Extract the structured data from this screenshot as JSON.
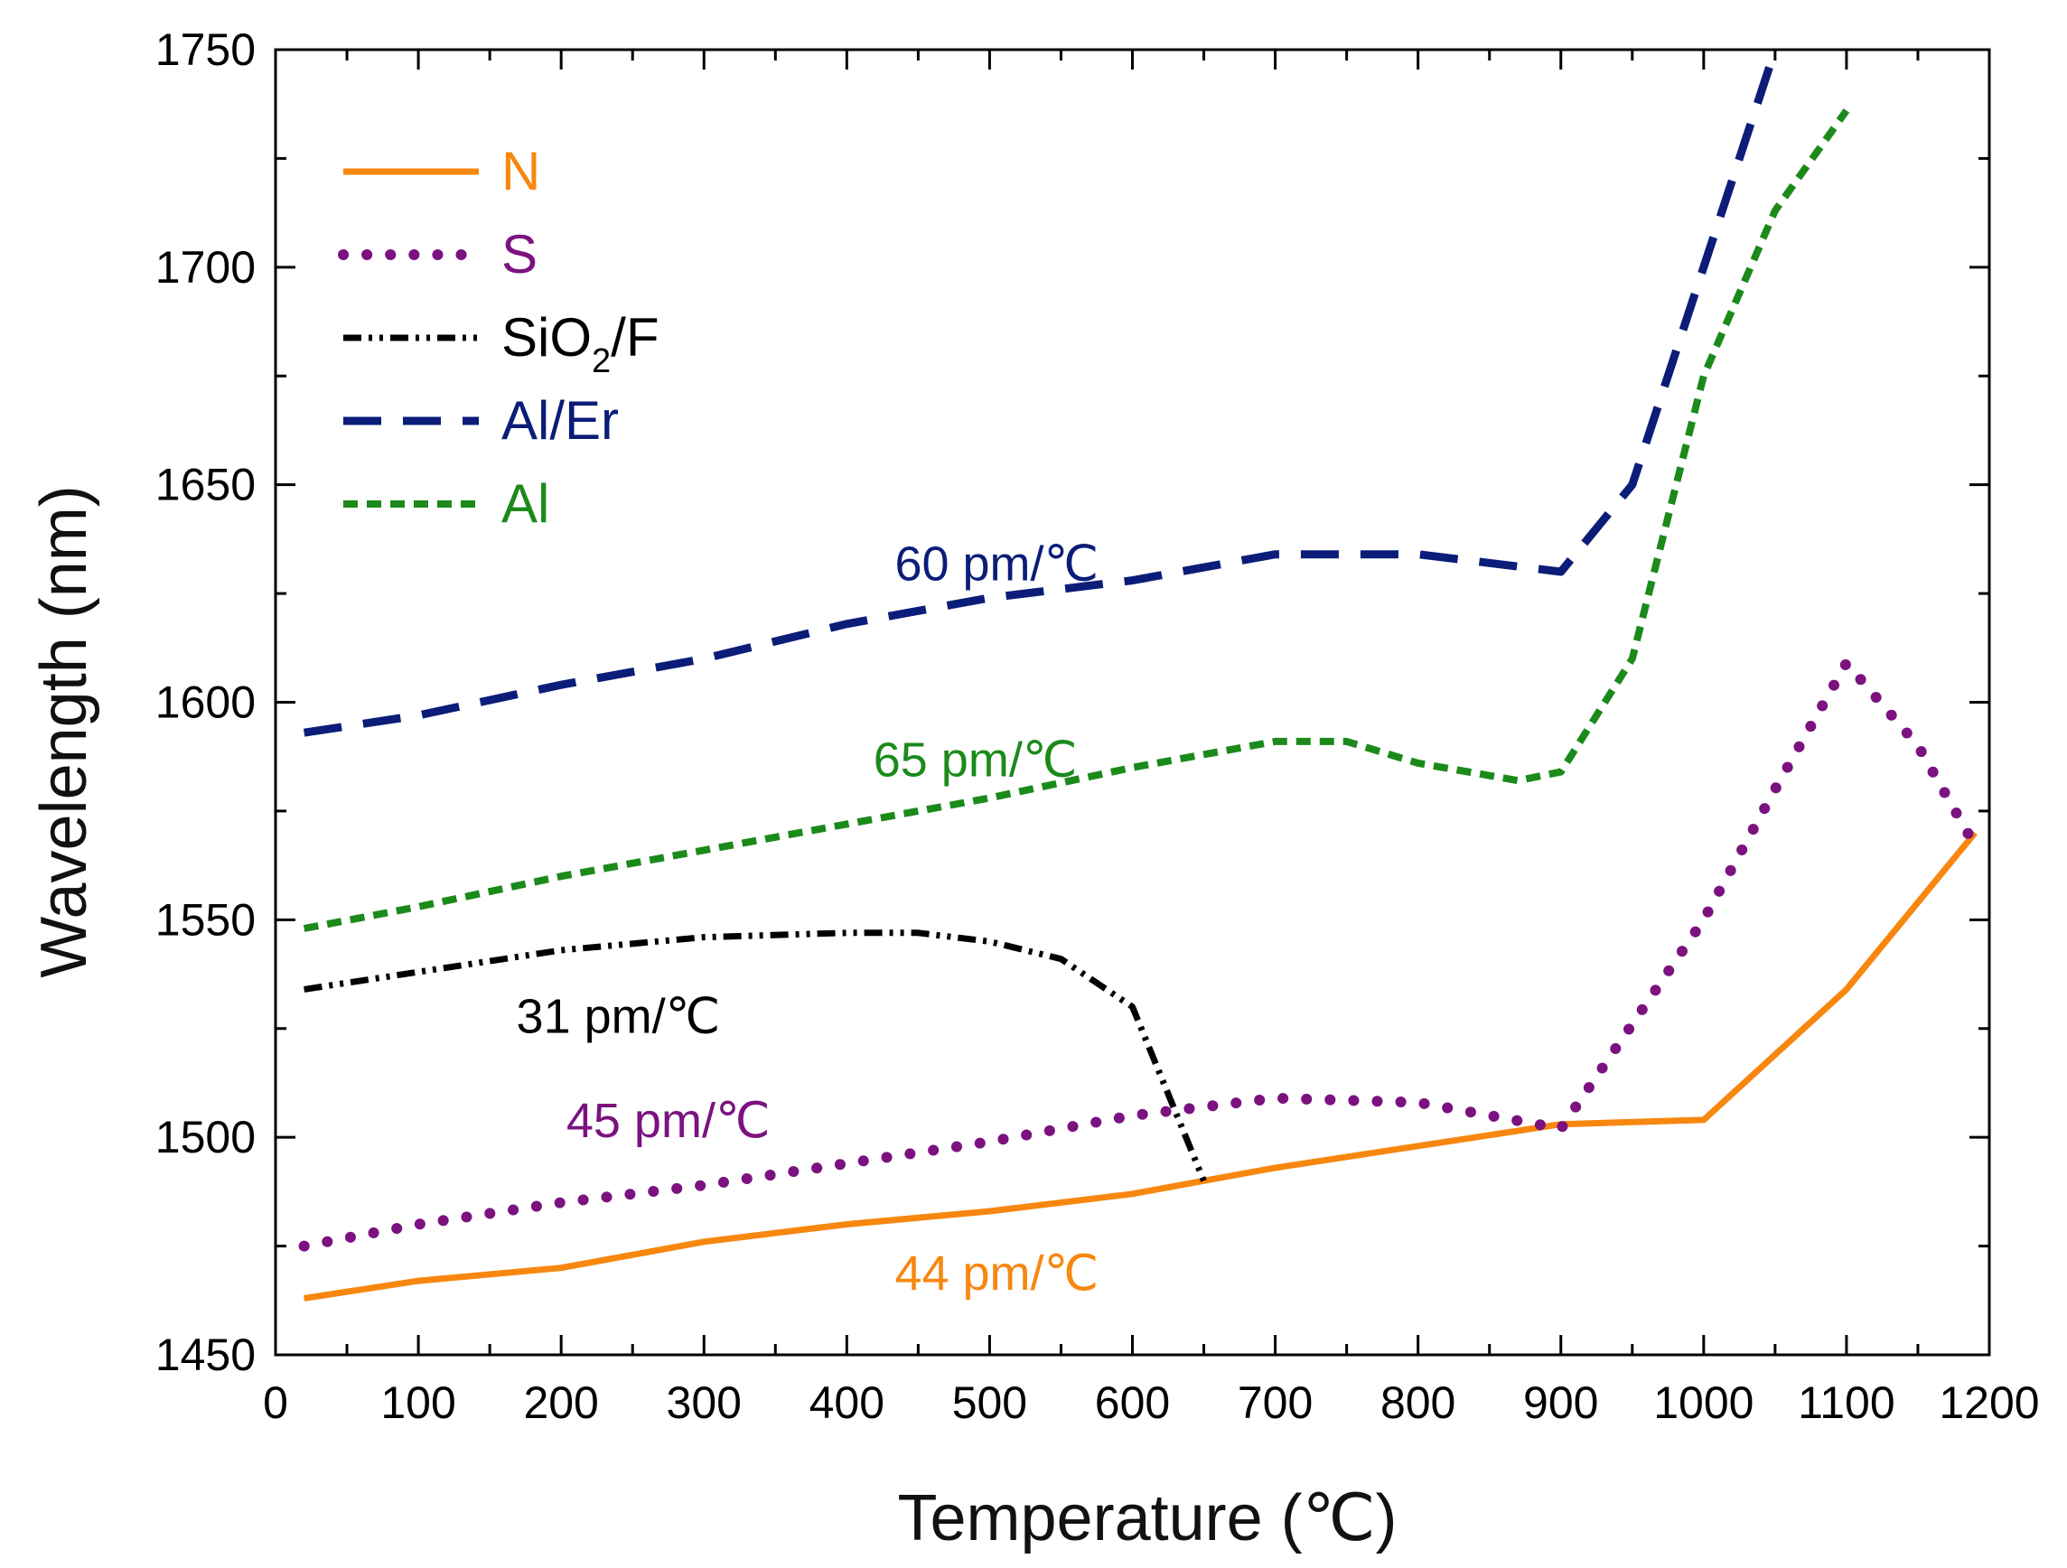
{
  "chart_data": {
    "type": "line",
    "xlabel": "Temperature (℃)",
    "ylabel": "Wavelength (nm)",
    "xlim": [
      0,
      1200
    ],
    "ylim": [
      1450,
      1750
    ],
    "xticks": [
      0,
      100,
      200,
      300,
      400,
      500,
      600,
      700,
      800,
      900,
      1000,
      1100,
      1200
    ],
    "yticks": [
      1450,
      1500,
      1550,
      1600,
      1650,
      1700,
      1750
    ],
    "grid": false,
    "legend_position": "top-left",
    "series": [
      {
        "name": "N",
        "color": "#f7870f",
        "style": "solid",
        "x": [
          20,
          100,
          200,
          300,
          400,
          500,
          600,
          650,
          700,
          800,
          900,
          1000,
          1100,
          1190
        ],
        "y": [
          1463,
          1467,
          1470,
          1476,
          1480,
          1483,
          1487,
          1490,
          1493,
          1498,
          1503,
          1504,
          1534,
          1570
        ]
      },
      {
        "name": "S",
        "color": "#7b1280",
        "style": "dotted",
        "x": [
          20,
          100,
          200,
          300,
          400,
          500,
          600,
          700,
          800,
          900,
          1000,
          1050,
          1100,
          1150,
          1190
        ],
        "y": [
          1475,
          1480,
          1485,
          1489,
          1494,
          1499,
          1505,
          1509,
          1508,
          1502,
          1550,
          1580,
          1609,
          1590,
          1567
        ]
      },
      {
        "name": "SiO2/F",
        "color": "#000000",
        "style": "dashdotdot",
        "x": [
          20,
          100,
          200,
          300,
          400,
          450,
          500,
          550,
          600,
          650
        ],
        "y": [
          1534,
          1538,
          1543,
          1546,
          1547,
          1547,
          1545,
          1541,
          1530,
          1490
        ]
      },
      {
        "name": "Al/Er",
        "color": "#0b1d78",
        "style": "dashed",
        "x": [
          20,
          100,
          200,
          300,
          400,
          500,
          600,
          700,
          800,
          900,
          950,
          1000,
          1050
        ],
        "y": [
          1593,
          1597,
          1604,
          1610,
          1618,
          1624,
          1628,
          1634,
          1634,
          1630,
          1650,
          1700,
          1750
        ]
      },
      {
        "name": "Al",
        "color": "#1b8a1b",
        "style": "short-dashed",
        "x": [
          20,
          100,
          200,
          300,
          400,
          500,
          600,
          700,
          750,
          800,
          870,
          900,
          950,
          1000,
          1050,
          1100
        ],
        "y": [
          1548,
          1553,
          1560,
          1566,
          1572,
          1578,
          1585,
          1591,
          1591,
          1586,
          1582,
          1584,
          1610,
          1675,
          1713,
          1736
        ]
      }
    ],
    "annotations": [
      {
        "text": "60 pm/℃",
        "series": "Al/Er",
        "x": 505,
        "y": 1628
      },
      {
        "text": "65 pm/℃",
        "series": "Al",
        "x": 490,
        "y": 1583
      },
      {
        "text": "31 pm/℃",
        "series": "SiO2/F",
        "x": 240,
        "y": 1524
      },
      {
        "text": "45 pm/℃",
        "series": "S",
        "x": 275,
        "y": 1500
      },
      {
        "text": "44 pm/℃",
        "series": "N",
        "x": 505,
        "y": 1465
      }
    ],
    "legend": [
      {
        "label": "N",
        "series": "N"
      },
      {
        "label": "S",
        "series": "S"
      },
      {
        "label_main": "SiO",
        "label_sub": "2",
        "label_rest": "/F",
        "series": "SiO2/F"
      },
      {
        "label": "Al/Er",
        "series": "Al/Er"
      },
      {
        "label": "Al",
        "series": "Al"
      }
    ]
  }
}
